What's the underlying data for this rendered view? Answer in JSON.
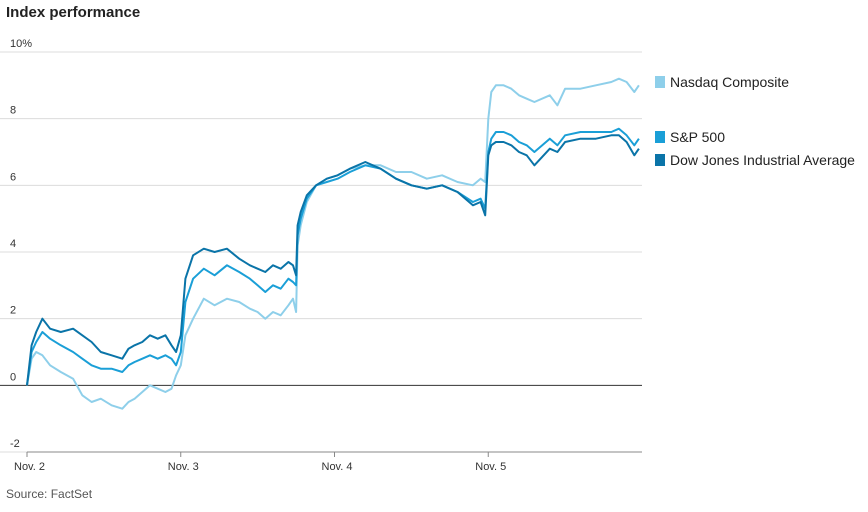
{
  "chart_data": {
    "type": "line",
    "title": "Index performance",
    "source": "Source: FactSet",
    "xlabel": "",
    "ylabel": "",
    "ylim": [
      -2,
      10
    ],
    "xlim": [
      0,
      4
    ],
    "y_ticks": [
      -2,
      0,
      2,
      4,
      6,
      8,
      10
    ],
    "y_tick_labels": [
      "-2",
      "0",
      "2",
      "4",
      "6",
      "8",
      "10%"
    ],
    "x_ticks": [
      0,
      1,
      2,
      3
    ],
    "x_tick_labels": [
      "Nov. 2",
      "Nov. 3",
      "Nov. 4",
      "Nov. 5"
    ],
    "grid": true,
    "legend_position": "right",
    "series": [
      {
        "name": "Nasdaq Composite",
        "color": "#8ecfea",
        "x": [
          0,
          0.03,
          0.06,
          0.1,
          0.15,
          0.22,
          0.3,
          0.36,
          0.42,
          0.48,
          0.55,
          0.62,
          0.66,
          0.7,
          0.75,
          0.8,
          0.85,
          0.9,
          0.94,
          0.97,
          1.0,
          1.03,
          1.08,
          1.15,
          1.22,
          1.3,
          1.38,
          1.45,
          1.5,
          1.55,
          1.6,
          1.65,
          1.7,
          1.73,
          1.75,
          1.76,
          1.78,
          1.82,
          1.88,
          1.95,
          2.02,
          2.1,
          2.2,
          2.3,
          2.4,
          2.5,
          2.6,
          2.7,
          2.8,
          2.9,
          2.95,
          2.98,
          3.0,
          3.02,
          3.05,
          3.1,
          3.15,
          3.2,
          3.25,
          3.3,
          3.4,
          3.45,
          3.5,
          3.6,
          3.7,
          3.8,
          3.85,
          3.9,
          3.95,
          3.98
        ],
        "values": [
          0,
          0.8,
          1.0,
          0.9,
          0.6,
          0.4,
          0.2,
          -0.3,
          -0.5,
          -0.4,
          -0.6,
          -0.7,
          -0.5,
          -0.4,
          -0.2,
          0.0,
          -0.1,
          -0.2,
          -0.1,
          0.3,
          0.6,
          1.5,
          2.0,
          2.6,
          2.4,
          2.6,
          2.5,
          2.3,
          2.2,
          2.0,
          2.2,
          2.1,
          2.4,
          2.6,
          2.2,
          4.2,
          4.8,
          5.5,
          6.0,
          6.2,
          6.3,
          6.5,
          6.6,
          6.6,
          6.4,
          6.4,
          6.2,
          6.3,
          6.1,
          6.0,
          6.2,
          6.1,
          8.0,
          8.8,
          9.0,
          9.0,
          8.9,
          8.7,
          8.6,
          8.5,
          8.7,
          8.4,
          8.9,
          8.9,
          9.0,
          9.1,
          9.2,
          9.1,
          8.8,
          9.0
        ]
      },
      {
        "name": "S&P 500",
        "color": "#1a9fd7",
        "x": [
          0,
          0.03,
          0.06,
          0.1,
          0.15,
          0.22,
          0.3,
          0.36,
          0.42,
          0.48,
          0.55,
          0.62,
          0.66,
          0.7,
          0.75,
          0.8,
          0.85,
          0.9,
          0.94,
          0.97,
          1.0,
          1.03,
          1.08,
          1.15,
          1.22,
          1.3,
          1.38,
          1.45,
          1.5,
          1.55,
          1.6,
          1.65,
          1.7,
          1.73,
          1.75,
          1.76,
          1.78,
          1.82,
          1.88,
          1.95,
          2.02,
          2.1,
          2.2,
          2.3,
          2.4,
          2.5,
          2.6,
          2.7,
          2.8,
          2.9,
          2.95,
          2.98,
          3.0,
          3.02,
          3.05,
          3.1,
          3.15,
          3.2,
          3.25,
          3.3,
          3.4,
          3.45,
          3.5,
          3.6,
          3.7,
          3.8,
          3.85,
          3.9,
          3.95,
          3.98
        ],
        "values": [
          0,
          1.0,
          1.3,
          1.6,
          1.4,
          1.2,
          1.0,
          0.8,
          0.6,
          0.5,
          0.5,
          0.4,
          0.6,
          0.7,
          0.8,
          0.9,
          0.8,
          0.9,
          0.8,
          0.6,
          1.0,
          2.5,
          3.2,
          3.5,
          3.3,
          3.6,
          3.4,
          3.2,
          3.0,
          2.8,
          3.0,
          2.9,
          3.2,
          3.1,
          3.0,
          4.5,
          5.0,
          5.6,
          6.0,
          6.1,
          6.2,
          6.4,
          6.6,
          6.5,
          6.2,
          6.0,
          5.9,
          6.0,
          5.8,
          5.5,
          5.6,
          5.3,
          7.0,
          7.4,
          7.6,
          7.6,
          7.5,
          7.3,
          7.2,
          7.0,
          7.4,
          7.2,
          7.5,
          7.6,
          7.6,
          7.6,
          7.7,
          7.5,
          7.2,
          7.4
        ]
      },
      {
        "name": "Dow Jones Industrial Average",
        "color": "#0a74a8",
        "x": [
          0,
          0.03,
          0.06,
          0.1,
          0.15,
          0.22,
          0.3,
          0.36,
          0.42,
          0.48,
          0.55,
          0.62,
          0.66,
          0.7,
          0.75,
          0.8,
          0.85,
          0.9,
          0.94,
          0.97,
          1.0,
          1.03,
          1.08,
          1.15,
          1.22,
          1.3,
          1.38,
          1.45,
          1.5,
          1.55,
          1.6,
          1.65,
          1.7,
          1.73,
          1.75,
          1.76,
          1.78,
          1.82,
          1.88,
          1.95,
          2.02,
          2.1,
          2.2,
          2.3,
          2.4,
          2.5,
          2.6,
          2.7,
          2.8,
          2.9,
          2.95,
          2.98,
          3.0,
          3.02,
          3.05,
          3.1,
          3.15,
          3.2,
          3.25,
          3.3,
          3.4,
          3.45,
          3.5,
          3.6,
          3.7,
          3.8,
          3.85,
          3.9,
          3.95,
          3.98
        ],
        "values": [
          0,
          1.2,
          1.6,
          2.0,
          1.7,
          1.6,
          1.7,
          1.5,
          1.3,
          1.0,
          0.9,
          0.8,
          1.1,
          1.2,
          1.3,
          1.5,
          1.4,
          1.5,
          1.2,
          1.0,
          1.5,
          3.2,
          3.9,
          4.1,
          4.0,
          4.1,
          3.8,
          3.6,
          3.5,
          3.4,
          3.6,
          3.5,
          3.7,
          3.6,
          3.3,
          4.8,
          5.2,
          5.7,
          6.0,
          6.2,
          6.3,
          6.5,
          6.7,
          6.5,
          6.2,
          6.0,
          5.9,
          6.0,
          5.8,
          5.4,
          5.5,
          5.1,
          6.9,
          7.2,
          7.3,
          7.3,
          7.2,
          7.0,
          6.9,
          6.6,
          7.1,
          7.0,
          7.3,
          7.4,
          7.4,
          7.5,
          7.5,
          7.3,
          6.9,
          7.1
        ]
      }
    ]
  }
}
